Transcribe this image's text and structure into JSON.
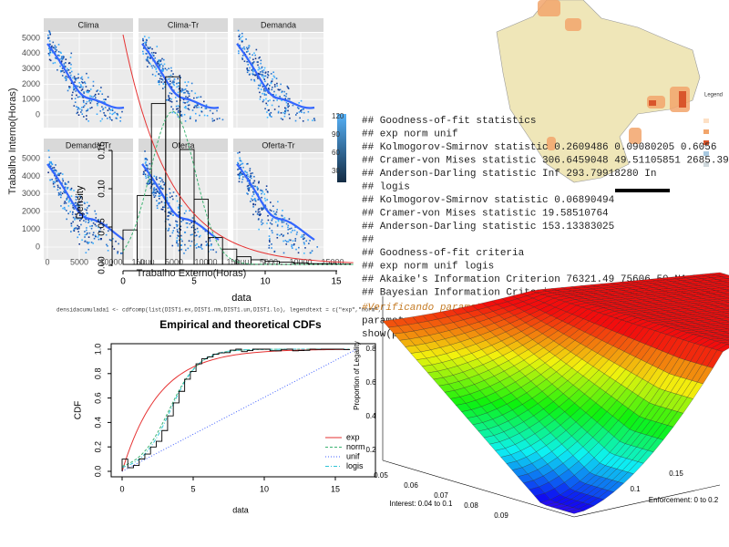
{
  "facet_plot": {
    "panels": [
      "Clima",
      "Clima-Tr",
      "Demanda",
      "Demanda-Tr",
      "Oferta",
      "Oferta-Tr"
    ],
    "y_ticks": [
      "5000",
      "4000",
      "3000",
      "2000",
      "1000",
      "0"
    ],
    "x_ticks": [
      "0",
      "5000",
      "10000",
      "15000"
    ],
    "y_title": "Trabalho Interno(Horas)",
    "x_title": "Trabalho Externo(Horas)",
    "colorbar_ticks": [
      "120",
      "90",
      "60",
      "30"
    ]
  },
  "histogram": {
    "y_title": "Density",
    "y_ticks": [
      "0.15",
      "0.10",
      "0.05",
      "0.00"
    ],
    "x_ticks": [
      "0",
      "5",
      "10",
      "15"
    ],
    "x_title": "data"
  },
  "map": {
    "legend_title": "Legend"
  },
  "console": {
    "lines": [
      "## Goodness-of-fit statistics",
      "##                                        exp          norm         unif",
      "## Kolmogorov-Smirnov statistic   0.2609486   0.09080205    0.6056",
      "## Cramer-von Mises statistic   306.6459048  49.51105851 2685.3941",
      "## Anderson-Darling statistic         Inf  293.79918280         In",
      "##                                      logis",
      "## Kolmogorov-Smirnov statistic  0.06890494",
      "## Cramer-von Mises statistic   19.58510764",
      "## Anderson-Darling statistic   153.13383025",
      "##",
      "## Goodness-of-fit criteria",
      "##                                    exp     norm unif    logis",
      "## Akaike's Information Criterion 76321.49 75606.50   NA 73901.25",
      "## Bayesian Information Criterion 76339.32 75622.16   NA 73916.92"
    ],
    "comment": "#Verificando parametros",
    "code": [
      "parametros1 <- fitdist(DIST1, \"logis\")$estimate",
      "show(parametros1)"
    ]
  },
  "code_line": "densidacumulada1 <- cdfcomp(list(DIST1.ex,DIST1.nm,DIST1.un,DIST1.lo), legendtext = c(\"exp\",\"norm\",",
  "cdf_plot": {
    "title": "Empirical and theoretical CDFs",
    "y_title": "CDF",
    "y_ticks": [
      "1.0",
      "0.8",
      "0.6",
      "0.4",
      "0.2",
      "0.0"
    ],
    "x_ticks": [
      "0",
      "5",
      "10",
      "15"
    ],
    "x_title": "data",
    "legend": [
      "exp",
      "norm",
      "unif",
      "logis"
    ]
  },
  "surface_plot": {
    "z_title": "Proportion of Legality",
    "z_ticks": [
      "0.8",
      "0.6",
      "0.4",
      "0.2"
    ],
    "x_title": "Interest: 0.04 to 0.1",
    "x_ticks": [
      "0.05",
      "0.06",
      "0.07",
      "0.08",
      "0.09"
    ],
    "y_title": "Enforcement: 0 to 0.2",
    "y_ticks": [
      "0.1",
      "0.15"
    ]
  }
}
